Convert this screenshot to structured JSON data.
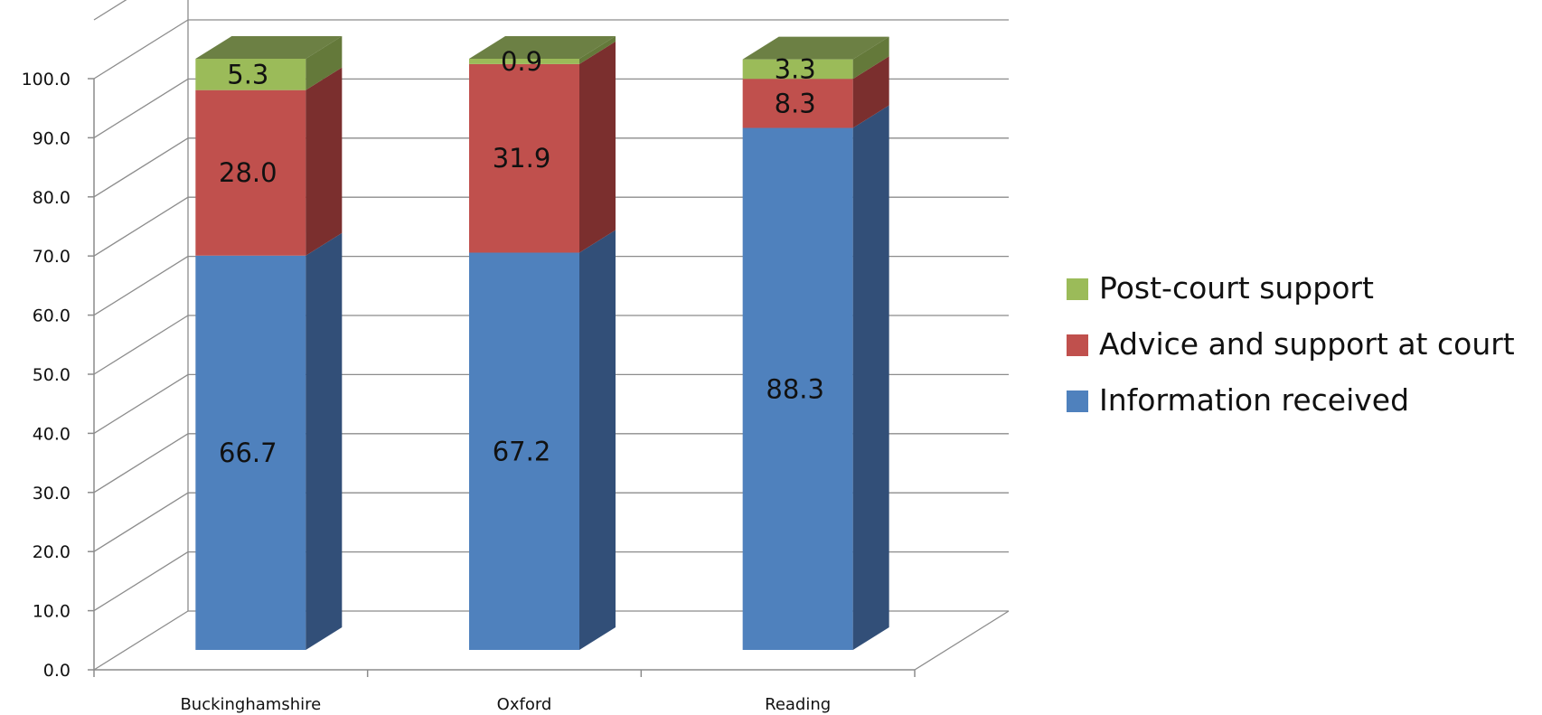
{
  "chart_data": {
    "type": "bar",
    "stacked": true,
    "three_d": true,
    "categories": [
      "Buckinghamshire",
      "Oxford",
      "Reading"
    ],
    "series": [
      {
        "name": "Information received",
        "values": [
          66.7,
          67.2,
          88.3
        ],
        "color": "#4F81BD",
        "side_color": "#324F78"
      },
      {
        "name": "Advice and support at court",
        "values": [
          28.0,
          31.9,
          8.3
        ],
        "color": "#C0504D",
        "side_color": "#7B2F2E"
      },
      {
        "name": "Post-court support",
        "values": [
          5.3,
          0.9,
          3.3
        ],
        "color": "#9BBB59",
        "side_color": "#64793A"
      }
    ],
    "data_labels": [
      [
        "66.7",
        "67.2",
        "88.3"
      ],
      [
        "28.0",
        "31.9",
        "8.3"
      ],
      [
        "5.3",
        "0.9",
        "3.3"
      ]
    ],
    "yticks": [
      "0.0",
      "10.0",
      "20.0",
      "30.0",
      "40.0",
      "50.0",
      "60.0",
      "70.0",
      "80.0",
      "90.0",
      "100.0"
    ],
    "ylim": [
      0,
      100
    ],
    "grid": true,
    "legend_position": "right",
    "title": "",
    "xlabel": "",
    "ylabel": ""
  }
}
